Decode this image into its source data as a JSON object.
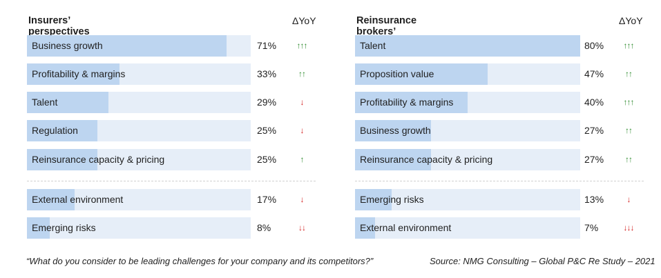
{
  "chart_data": [
    {
      "type": "bar",
      "orientation": "horizontal",
      "title": "Insurers’ perspectives",
      "delta_header": "ΔYoY",
      "xlim": [
        0,
        80
      ],
      "categories": [
        "Business growth",
        "Profitability & margins",
        "Talent",
        "Regulation",
        "Reinsurance capacity & pricing",
        "External environment",
        "Emerging risks"
      ],
      "values": [
        71,
        33,
        29,
        25,
        25,
        17,
        8
      ],
      "labels": [
        "71%",
        "33%",
        "29%",
        "25%",
        "25%",
        "17%",
        "8%"
      ],
      "yoy": [
        "↑↑↑",
        "↑↑",
        "↓",
        "↓",
        "↑",
        "↓",
        "↓↓"
      ],
      "yoy_direction": [
        "up",
        "up",
        "down",
        "down",
        "up",
        "down",
        "down"
      ],
      "group_break_after": 5
    },
    {
      "type": "bar",
      "orientation": "horizontal",
      "title": "Reinsurance brokers’ perspectives",
      "delta_header": "ΔYoY",
      "xlim": [
        0,
        80
      ],
      "categories": [
        "Talent",
        "Proposition value",
        "Profitability & margins",
        "Business growth",
        "Reinsurance capacity & pricing",
        "Emerging risks",
        "External environment"
      ],
      "values": [
        80,
        47,
        40,
        27,
        27,
        13,
        7
      ],
      "labels": [
        "80%",
        "47%",
        "40%",
        "27%",
        "27%",
        "13%",
        "7%"
      ],
      "yoy": [
        "↑↑↑",
        "↑↑",
        "↑↑↑",
        "↑↑",
        "↑↑",
        "↓",
        "↓↓↓"
      ],
      "yoy_direction": [
        "up",
        "up",
        "up",
        "up",
        "up",
        "down",
        "down"
      ],
      "group_break_after": 5
    }
  ],
  "colors": {
    "track": "#e6eef8",
    "fill": "#bdd5f0",
    "up": "#2e8b2e",
    "down": "#d42020"
  },
  "footer": {
    "question": "“What do you consider to be leading challenges for your company and its competitors?”",
    "source": "Source: NMG Consulting  – Global P&C Re Study – 2021"
  }
}
